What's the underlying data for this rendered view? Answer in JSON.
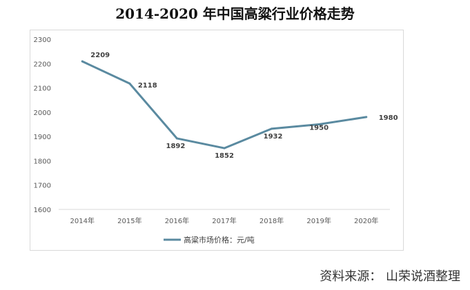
{
  "title": "2014-2020 年中国高粱行业价格走势",
  "source_note": "资料来源： 山荣说酒整理",
  "chart_data": {
    "type": "line",
    "title": "2014-2020 年中国高粱行业价格走势",
    "categories": [
      "2014年",
      "2015年",
      "2016年",
      "2017年",
      "2018年",
      "2019年",
      "2020年"
    ],
    "series": [
      {
        "name": "高粱市场价格：元/吨",
        "values": [
          2209,
          2118,
          1892,
          1852,
          1932,
          1950,
          1980
        ],
        "color": "#5a8aa0"
      }
    ],
    "ylim": [
      1600,
      2300
    ],
    "yticks": [
      1600,
      1700,
      1800,
      1900,
      2000,
      2100,
      2200,
      2300
    ],
    "grid": false,
    "legend": "bottom"
  }
}
